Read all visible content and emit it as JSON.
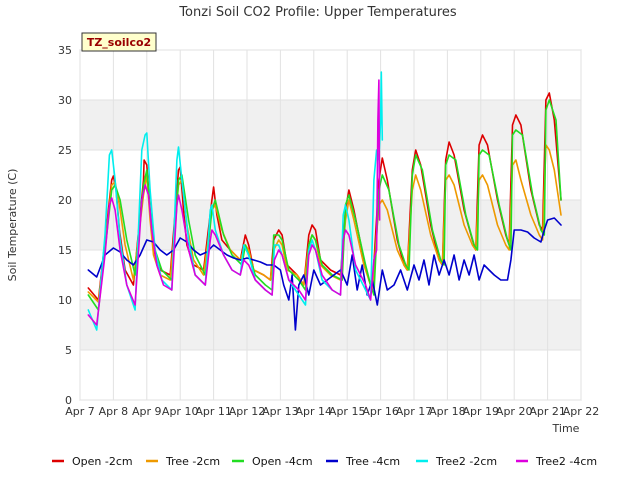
{
  "chart_data": {
    "type": "line",
    "title": "Tonzi Soil CO2 Profile: Upper Temperatures",
    "xlabel": "Time",
    "ylabel": "Soil Temperature (C)",
    "badge": "TZ_soilco2",
    "xlim": [
      7,
      22
    ],
    "ylim": [
      0,
      35
    ],
    "x_ticks": [
      7,
      8,
      9,
      10,
      11,
      12,
      13,
      14,
      15,
      16,
      17,
      18,
      19,
      20,
      21,
      22
    ],
    "x_tick_labels": [
      "Apr 7",
      "Apr 8",
      "Apr 9",
      "Apr 10",
      "Apr 11",
      "Apr 12",
      "Apr 13",
      "Apr 14",
      "Apr 15",
      "Apr 16",
      "Apr 17",
      "Apr 18",
      "Apr 19",
      "Apr 20",
      "Apr 21",
      "Apr 22"
    ],
    "y_ticks": [
      0,
      5,
      10,
      15,
      20,
      25,
      30,
      35
    ],
    "y_tick_labels": [
      "0",
      "5",
      "10",
      "15",
      "20",
      "25",
      "30",
      "35"
    ],
    "grid": "horizontal bands",
    "legend_position": "bottom",
    "series": [
      {
        "name": "Open -2cm",
        "color": "#dd0000",
        "x": [
          7.25,
          7.55,
          7.8,
          7.95,
          8.0,
          8.08,
          8.18,
          8.35,
          8.6,
          8.9,
          8.92,
          9.0,
          9.1,
          9.2,
          9.4,
          9.7,
          9.95,
          10.0,
          10.1,
          10.2,
          10.4,
          10.7,
          10.95,
          11.0,
          11.1,
          11.25,
          11.5,
          11.8,
          11.95,
          12.05,
          12.2,
          12.5,
          12.7,
          12.8,
          12.95,
          13.05,
          13.2,
          13.5,
          13.7,
          13.85,
          13.95,
          14.05,
          14.2,
          14.5,
          14.8,
          14.95,
          15.05,
          15.2,
          15.5,
          15.65,
          15.75,
          15.95,
          16.05,
          16.2,
          16.5,
          16.7,
          16.8,
          16.95,
          17.05,
          17.2,
          17.5,
          17.75,
          17.85,
          17.95,
          18.05,
          18.2,
          18.5,
          18.75,
          18.85,
          18.95,
          19.05,
          19.2,
          19.5,
          19.75,
          19.85,
          19.95,
          20.05,
          20.2,
          20.5,
          20.75,
          20.85,
          20.95,
          21.05,
          21.2,
          21.4
        ],
        "values": [
          11.2,
          10.0,
          17.5,
          22.0,
          22.4,
          21.0,
          17.0,
          13.0,
          11.5,
          22.0,
          24.0,
          23.5,
          19.0,
          15.0,
          13.0,
          12.5,
          23.0,
          23.3,
          19.0,
          15.5,
          13.5,
          13.0,
          20.0,
          21.3,
          18.5,
          16.0,
          15.0,
          14.0,
          16.5,
          15.5,
          13.0,
          12.5,
          12.0,
          16.0,
          17.0,
          16.5,
          13.5,
          12.5,
          11.5,
          16.5,
          17.5,
          17.0,
          14.0,
          13.0,
          12.5,
          19.0,
          21.0,
          19.0,
          14.0,
          12.0,
          11.0,
          22.0,
          24.2,
          22.0,
          16.0,
          13.5,
          13.0,
          23.0,
          25.0,
          23.5,
          17.5,
          14.0,
          13.5,
          24.0,
          25.8,
          24.5,
          19.0,
          16.0,
          15.0,
          25.5,
          26.5,
          25.5,
          20.0,
          16.5,
          15.5,
          27.5,
          28.5,
          27.5,
          21.0,
          17.5,
          17.0,
          30.0,
          30.7,
          28.0,
          20.0
        ]
      },
      {
        "name": "Tree -2cm",
        "color": "#ee9900",
        "x": [
          7.25,
          7.55,
          7.8,
          7.95,
          8.05,
          8.18,
          8.35,
          8.6,
          8.9,
          9.0,
          9.1,
          9.2,
          9.4,
          9.7,
          9.95,
          10.05,
          10.2,
          10.4,
          10.7,
          10.95,
          11.05,
          11.25,
          11.5,
          11.8,
          11.95,
          12.05,
          12.2,
          12.5,
          12.7,
          12.8,
          12.95,
          13.05,
          13.2,
          13.5,
          13.7,
          13.85,
          13.95,
          14.05,
          14.2,
          14.5,
          14.8,
          14.95,
          15.05,
          15.2,
          15.5,
          15.65,
          15.75,
          15.95,
          16.05,
          16.2,
          16.5,
          16.7,
          16.8,
          16.95,
          17.05,
          17.2,
          17.5,
          17.75,
          17.85,
          17.95,
          18.05,
          18.2,
          18.5,
          18.75,
          18.85,
          18.95,
          19.05,
          19.2,
          19.5,
          19.75,
          19.85,
          19.95,
          20.05,
          20.2,
          20.5,
          20.75,
          20.85,
          20.95,
          21.05,
          21.2,
          21.4
        ],
        "values": [
          10.8,
          9.8,
          17.0,
          21.5,
          21.8,
          19.5,
          15.5,
          12.0,
          20.5,
          22.5,
          18.0,
          14.5,
          12.5,
          12.0,
          21.5,
          22.0,
          17.5,
          14.0,
          12.5,
          19.0,
          19.5,
          17.0,
          15.0,
          14.0,
          15.5,
          15.0,
          13.0,
          12.5,
          12.0,
          15.0,
          16.0,
          15.5,
          13.0,
          12.5,
          11.5,
          15.5,
          16.5,
          16.0,
          13.5,
          12.5,
          12.0,
          18.0,
          20.0,
          18.0,
          13.5,
          12.0,
          11.0,
          19.5,
          20.0,
          19.0,
          15.0,
          13.5,
          13.0,
          21.0,
          22.5,
          21.0,
          16.5,
          14.0,
          13.5,
          22.0,
          22.5,
          21.5,
          17.5,
          15.5,
          15.0,
          22.0,
          22.5,
          21.5,
          17.5,
          15.5,
          15.0,
          23.5,
          24.0,
          22.0,
          18.5,
          16.5,
          16.0,
          25.5,
          25.0,
          23.0,
          18.5
        ]
      },
      {
        "name": "Open -4cm",
        "color": "#22dd22",
        "x": [
          7.25,
          7.55,
          7.8,
          7.95,
          8.05,
          8.2,
          8.4,
          8.65,
          8.9,
          9.0,
          9.1,
          9.25,
          9.45,
          9.75,
          9.95,
          10.05,
          10.25,
          10.45,
          10.75,
          10.95,
          11.05,
          11.3,
          11.55,
          11.85,
          11.95,
          12.05,
          12.25,
          12.55,
          12.75,
          12.8,
          12.95,
          13.05,
          13.25,
          13.55,
          13.75,
          13.85,
          13.95,
          14.05,
          14.25,
          14.55,
          14.85,
          14.95,
          15.05,
          15.25,
          15.55,
          15.7,
          15.8,
          15.95,
          16.05,
          16.25,
          16.55,
          16.75,
          16.85,
          16.95,
          17.05,
          17.25,
          17.55,
          17.8,
          17.9,
          17.95,
          18.05,
          18.25,
          18.55,
          18.8,
          18.9,
          18.95,
          19.05,
          19.25,
          19.55,
          19.8,
          19.9,
          19.95,
          20.05,
          20.25,
          20.55,
          20.8,
          20.9,
          20.95,
          21.05,
          21.25,
          21.4
        ],
        "values": [
          10.5,
          9.0,
          16.5,
          21.0,
          21.5,
          20.0,
          16.0,
          12.5,
          21.5,
          23.0,
          19.0,
          15.0,
          13.0,
          12.0,
          22.0,
          22.5,
          18.0,
          14.5,
          12.5,
          19.0,
          20.0,
          16.5,
          14.5,
          13.5,
          15.5,
          14.5,
          12.5,
          11.5,
          11.0,
          16.5,
          16.5,
          16.0,
          13.0,
          12.0,
          11.0,
          15.5,
          16.5,
          16.0,
          13.5,
          12.5,
          12.0,
          19.5,
          20.5,
          18.0,
          13.5,
          11.5,
          10.5,
          21.0,
          22.5,
          21.0,
          15.5,
          13.5,
          13.0,
          22.5,
          24.5,
          23.0,
          17.0,
          14.0,
          13.5,
          23.5,
          24.5,
          24.0,
          18.5,
          15.5,
          15.0,
          24.5,
          25.0,
          24.5,
          19.5,
          16.0,
          15.0,
          26.5,
          27.0,
          26.5,
          20.5,
          17.0,
          16.5,
          29.0,
          30.0,
          28.0,
          20.0
        ]
      },
      {
        "name": "Tree -4cm",
        "color": "#0000cc",
        "x": [
          7.25,
          7.5,
          7.75,
          8.0,
          8.2,
          8.4,
          8.6,
          8.8,
          9.0,
          9.2,
          9.4,
          9.6,
          9.8,
          10.0,
          10.2,
          10.4,
          10.6,
          10.8,
          11.0,
          11.2,
          11.4,
          11.6,
          11.8,
          12.0,
          12.2,
          12.4,
          12.6,
          12.8,
          13.0,
          13.1,
          13.25,
          13.35,
          13.45,
          13.55,
          13.7,
          13.85,
          14.0,
          14.2,
          14.4,
          14.6,
          14.8,
          15.0,
          15.15,
          15.3,
          15.45,
          15.6,
          15.75,
          15.9,
          16.05,
          16.2,
          16.4,
          16.6,
          16.8,
          17.0,
          17.15,
          17.3,
          17.45,
          17.6,
          17.75,
          17.9,
          18.05,
          18.2,
          18.35,
          18.5,
          18.65,
          18.8,
          18.95,
          19.1,
          19.25,
          19.4,
          19.6,
          19.8,
          19.9,
          20.0,
          20.2,
          20.4,
          20.6,
          20.8,
          20.9,
          21.0,
          21.2,
          21.4
        ],
        "values": [
          13.0,
          12.3,
          14.5,
          15.2,
          14.8,
          14.0,
          13.5,
          14.5,
          16.0,
          15.8,
          15.0,
          14.5,
          15.0,
          16.2,
          15.8,
          15.0,
          14.5,
          14.8,
          15.5,
          15.0,
          14.5,
          14.2,
          14.0,
          14.2,
          14.0,
          13.8,
          13.5,
          13.5,
          13.0,
          11.5,
          10.0,
          12.5,
          7.0,
          11.5,
          12.5,
          10.5,
          13.0,
          11.5,
          12.0,
          12.5,
          13.0,
          11.5,
          14.5,
          11.0,
          13.5,
          10.5,
          12.0,
          9.5,
          13.0,
          11.0,
          11.5,
          13.0,
          11.0,
          13.5,
          12.0,
          14.0,
          11.5,
          14.5,
          12.5,
          14.0,
          12.5,
          14.5,
          12.0,
          14.0,
          12.5,
          14.5,
          12.0,
          13.5,
          13.0,
          12.5,
          12.0,
          12.0,
          14.0,
          17.0,
          17.0,
          16.8,
          16.2,
          15.8,
          17.0,
          18.0,
          18.2,
          17.5
        ]
      },
      {
        "name": "Tree2 -2cm",
        "color": "#00eeee",
        "x": [
          7.25,
          7.5,
          7.75,
          7.88,
          7.95,
          8.05,
          8.2,
          8.4,
          8.65,
          8.85,
          8.95,
          9.0,
          9.1,
          9.25,
          9.45,
          9.75,
          9.9,
          9.95,
          10.05,
          10.25,
          10.45,
          10.75,
          10.9,
          10.95,
          11.05,
          11.3,
          11.55,
          11.8,
          11.9,
          12.05,
          12.25,
          12.55,
          12.75,
          12.82,
          12.95,
          13.05,
          13.25,
          13.55,
          13.75,
          13.85,
          13.95,
          14.05,
          14.25,
          14.55,
          14.8,
          14.88,
          14.95,
          15.05,
          15.25,
          15.55,
          15.7,
          15.8,
          15.88,
          15.95,
          16.0,
          16.02,
          16.05
        ],
        "values": [
          9.0,
          7.0,
          16.5,
          24.5,
          25.0,
          22.0,
          16.0,
          11.5,
          9.0,
          25.0,
          26.5,
          26.7,
          21.0,
          15.0,
          12.0,
          11.0,
          24.0,
          25.3,
          22.0,
          16.0,
          12.5,
          11.5,
          19.0,
          19.5,
          17.0,
          14.5,
          13.0,
          12.5,
          15.5,
          14.5,
          12.0,
          11.0,
          10.5,
          15.5,
          15.5,
          14.5,
          12.0,
          10.5,
          9.5,
          15.0,
          16.0,
          15.0,
          12.0,
          11.0,
          10.5,
          18.5,
          19.5,
          18.0,
          13.0,
          11.0,
          10.0,
          22.0,
          25.0,
          24.0,
          28.0,
          32.8,
          26.0
        ]
      },
      {
        "name": "Tree2 -4cm",
        "color": "#dd00dd",
        "x": [
          7.25,
          7.5,
          7.75,
          7.88,
          7.95,
          8.05,
          8.2,
          8.4,
          8.65,
          8.85,
          8.95,
          9.05,
          9.15,
          9.3,
          9.5,
          9.75,
          9.9,
          9.95,
          10.05,
          10.25,
          10.45,
          10.75,
          10.9,
          10.95,
          11.05,
          11.3,
          11.55,
          11.8,
          11.9,
          12.05,
          12.25,
          12.55,
          12.75,
          12.82,
          12.95,
          13.05,
          13.25,
          13.55,
          13.75,
          13.85,
          13.95,
          14.05,
          14.25,
          14.55,
          14.8,
          14.88,
          14.95,
          15.05,
          15.25,
          15.55,
          15.7,
          15.8,
          15.88,
          15.92,
          15.95,
          15.97
        ],
        "values": [
          8.5,
          7.5,
          14.5,
          19.5,
          20.2,
          19.0,
          15.0,
          11.5,
          9.5,
          20.0,
          21.5,
          20.5,
          17.0,
          13.5,
          11.5,
          11.0,
          19.5,
          20.5,
          19.0,
          15.0,
          12.5,
          11.5,
          16.0,
          17.0,
          16.5,
          14.5,
          13.0,
          12.5,
          14.0,
          13.5,
          12.0,
          11.0,
          10.5,
          14.0,
          15.0,
          14.5,
          12.0,
          11.0,
          10.0,
          14.5,
          15.5,
          15.0,
          12.5,
          11.0,
          10.5,
          16.0,
          17.0,
          16.5,
          13.5,
          11.5,
          10.0,
          14.0,
          15.0,
          28.0,
          32.0,
          18.0
        ]
      }
    ]
  }
}
